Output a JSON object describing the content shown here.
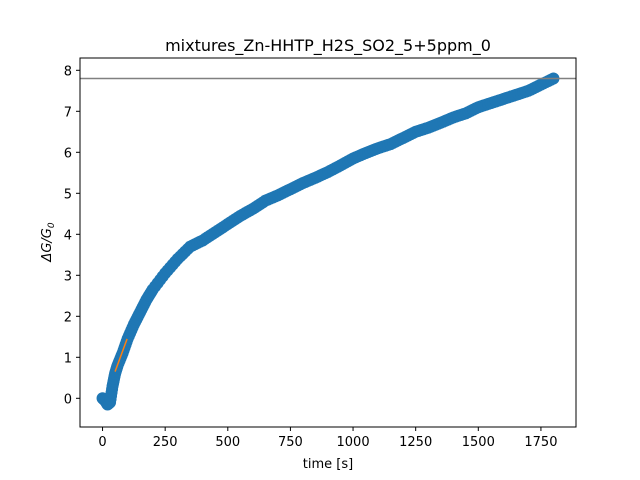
{
  "chart_data": {
    "type": "scatter",
    "title": "mixtures_Zn-HHTP_H2S_SO2_5+5ppm_0",
    "xlabel": "time [s]",
    "ylabel_main": "ΔG/G",
    "ylabel_sub": "0",
    "xlim": [
      -90,
      1890
    ],
    "ylim": [
      -0.7,
      8.3
    ],
    "xticks": [
      0,
      250,
      500,
      750,
      1000,
      1250,
      1500,
      1750
    ],
    "yticks": [
      0,
      1,
      2,
      3,
      4,
      5,
      6,
      7,
      8
    ],
    "grid": false,
    "scatter_color": "#1f77b4",
    "fit_line_color": "#ff7f0e",
    "hline_color": "#808080",
    "hline_y": 7.8,
    "fit_line": {
      "x": [
        50,
        98
      ],
      "y": [
        0.65,
        1.45
      ]
    },
    "curve_points": [
      [
        0,
        0.0
      ],
      [
        10,
        -0.05
      ],
      [
        20,
        -0.15
      ],
      [
        30,
        -0.1
      ],
      [
        40,
        0.3
      ],
      [
        50,
        0.6
      ],
      [
        60,
        0.8
      ],
      [
        80,
        1.1
      ],
      [
        100,
        1.45
      ],
      [
        125,
        1.8
      ],
      [
        150,
        2.1
      ],
      [
        175,
        2.4
      ],
      [
        200,
        2.65
      ],
      [
        250,
        3.05
      ],
      [
        300,
        3.4
      ],
      [
        350,
        3.7
      ],
      [
        400,
        3.85
      ],
      [
        450,
        4.05
      ],
      [
        500,
        4.25
      ],
      [
        550,
        4.45
      ],
      [
        600,
        4.62
      ],
      [
        650,
        4.82
      ],
      [
        700,
        4.95
      ],
      [
        750,
        5.1
      ],
      [
        800,
        5.25
      ],
      [
        850,
        5.38
      ],
      [
        900,
        5.52
      ],
      [
        950,
        5.68
      ],
      [
        1000,
        5.85
      ],
      [
        1050,
        5.98
      ],
      [
        1100,
        6.1
      ],
      [
        1150,
        6.2
      ],
      [
        1200,
        6.35
      ],
      [
        1250,
        6.5
      ],
      [
        1300,
        6.6
      ],
      [
        1350,
        6.72
      ],
      [
        1400,
        6.85
      ],
      [
        1450,
        6.95
      ],
      [
        1500,
        7.1
      ],
      [
        1550,
        7.2
      ],
      [
        1600,
        7.3
      ],
      [
        1650,
        7.4
      ],
      [
        1700,
        7.5
      ],
      [
        1750,
        7.65
      ],
      [
        1800,
        7.8
      ]
    ]
  }
}
